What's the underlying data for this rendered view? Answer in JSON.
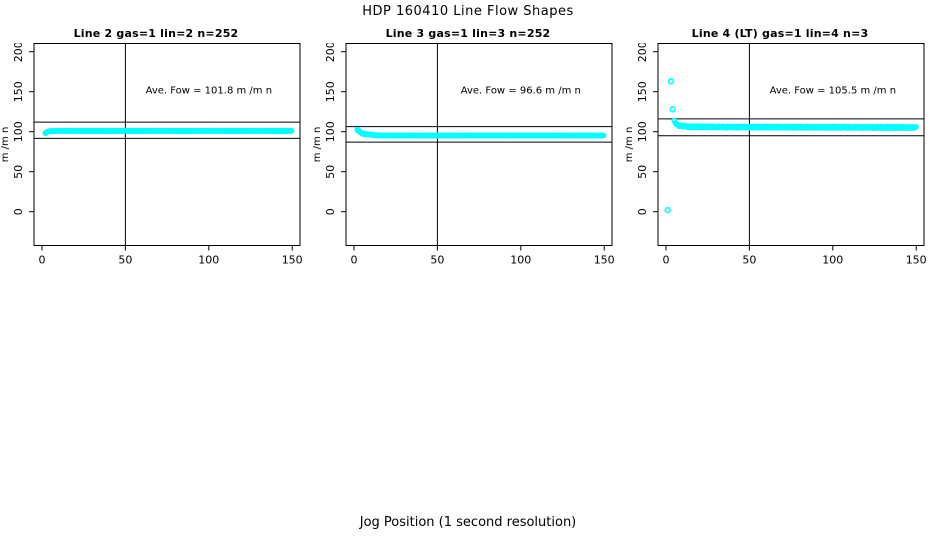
{
  "figure": {
    "title": "HDP  160410  Line Flow Shapes",
    "xlabel": "Jog Position (1 second resolution)",
    "background": "#ffffff",
    "axis_color": "#000000"
  },
  "chart_data": [
    {
      "type": "scatter",
      "title": "Line 2 gas=1 lin=2 n=252",
      "annotation": "Ave. Fow =  101.8  m /m n",
      "ave_flow": 101.8,
      "ylabel": "m /m n",
      "x_ticks": [
        0,
        50,
        100,
        150
      ],
      "y_ticks": [
        0,
        50,
        100,
        150,
        200
      ],
      "xlim": [
        -5,
        155
      ],
      "ylim": [
        -42,
        211
      ],
      "vline_x": 50,
      "ref_line_upper": 112.0,
      "ref_line_lower": 91.6,
      "point_color": "#00ffff",
      "band": {
        "x_start": 2,
        "x_end": 150,
        "step": 0.6,
        "jitter": 0.3,
        "control_points": [
          [
            2,
            98.5
          ],
          [
            4,
            100.5
          ],
          [
            9,
            101
          ],
          [
            150,
            101
          ]
        ]
      },
      "outliers": []
    },
    {
      "type": "scatter",
      "title": "Line 3 gas=1 lin=3 n=252",
      "annotation": "Ave. Fow =  96.6  m /m n",
      "ave_flow": 96.6,
      "ylabel": "m /m n",
      "x_ticks": [
        0,
        50,
        100,
        150
      ],
      "y_ticks": [
        0,
        50,
        100,
        150,
        200
      ],
      "xlim": [
        -5,
        155
      ],
      "ylim": [
        -42,
        211
      ],
      "vline_x": 50,
      "ref_line_upper": 106.3,
      "ref_line_lower": 86.9,
      "point_color": "#00ffff",
      "band": {
        "x_start": 2,
        "x_end": 150,
        "step": 0.6,
        "jitter": 0.3,
        "control_points": [
          [
            2,
            102.5
          ],
          [
            5,
            97.5
          ],
          [
            14,
            95.2
          ],
          [
            150,
            95.2
          ]
        ]
      },
      "outliers": []
    },
    {
      "type": "scatter",
      "title": "Line 4 (LT) gas=1 lin=4 n=3",
      "annotation": "Ave. Fow =  105.5  m /m n",
      "ave_flow": 105.5,
      "ylabel": "m /m n",
      "x_ticks": [
        0,
        50,
        100,
        150
      ],
      "y_ticks": [
        0,
        50,
        100,
        150,
        200
      ],
      "xlim": [
        -5,
        155
      ],
      "ylim": [
        -42,
        211
      ],
      "vline_x": 50,
      "ref_line_upper": 116.1,
      "ref_line_lower": 95.0,
      "point_color": "#00ffff",
      "band": {
        "x_start": 5,
        "x_end": 150,
        "step": 0.7,
        "jitter": 0.9,
        "control_points": [
          [
            5,
            113
          ],
          [
            7,
            108
          ],
          [
            13,
            106.2
          ],
          [
            40,
            105.8
          ],
          [
            150,
            105.2
          ]
        ]
      },
      "outliers": [
        [
          1,
          2
        ],
        [
          3,
          163
        ],
        [
          4,
          128
        ]
      ]
    }
  ]
}
